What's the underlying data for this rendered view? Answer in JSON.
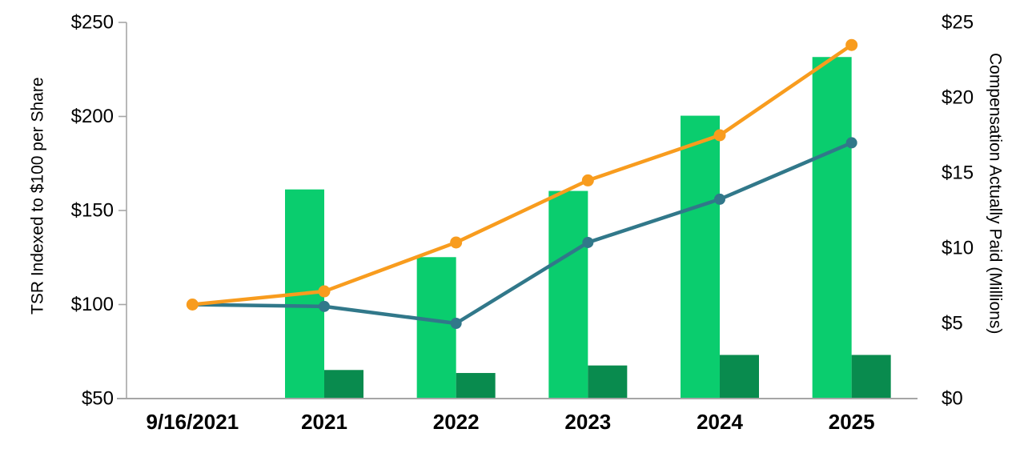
{
  "chart_data": {
    "type": "combo-bar-line",
    "categories": [
      "9/16/2021",
      "2021",
      "2022",
      "2023",
      "2024",
      "2025"
    ],
    "left_axis": {
      "title": "TSR Indexed to $100 per Share",
      "min": 50,
      "max": 250,
      "tick_values": [
        50,
        100,
        150,
        200,
        250
      ],
      "tick_labels": [
        "$50",
        "$100",
        "$150",
        "$200",
        "$250"
      ]
    },
    "right_axis": {
      "title": "Compensation Actually Paid (Millions)",
      "min": 0,
      "max": 25,
      "tick_values": [
        0,
        5,
        10,
        15,
        20,
        25
      ],
      "tick_labels": [
        "$0",
        "$5",
        "$10",
        "$15",
        "$20",
        "$25"
      ]
    },
    "bar_series": [
      {
        "name": "light-green-bars",
        "axis": "right",
        "color": "#0ACD6E",
        "values": [
          null,
          13.9,
          9.4,
          13.8,
          18.8,
          22.7
        ]
      },
      {
        "name": "dark-green-bars",
        "axis": "right",
        "color": "#098B4E",
        "values": [
          null,
          1.9,
          1.7,
          2.2,
          2.9,
          2.9
        ]
      }
    ],
    "line_series": [
      {
        "name": "teal-line",
        "axis": "left",
        "color": "#31788A",
        "point_radius": 7,
        "values": [
          100,
          99,
          90,
          133,
          156,
          186
        ]
      },
      {
        "name": "orange-line",
        "axis": "left",
        "color": "#F89C1E",
        "point_radius": 7.5,
        "values": [
          100,
          107,
          133,
          166,
          190,
          238
        ]
      }
    ],
    "grid": false,
    "legend": "none",
    "styles": {
      "axis_line_color": "#A6A6A6",
      "text_color": "#000000",
      "background": "#FFFFFF"
    }
  }
}
